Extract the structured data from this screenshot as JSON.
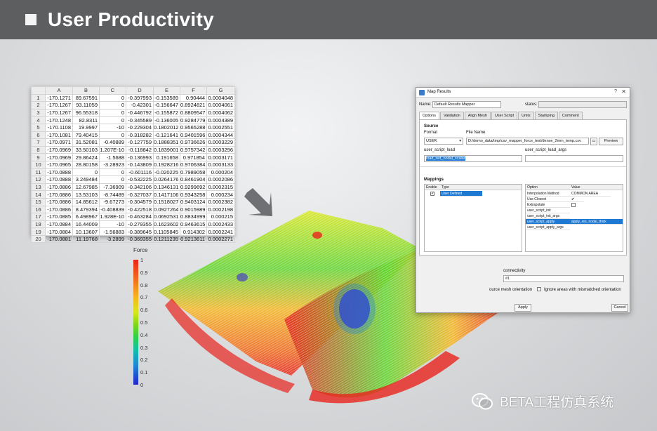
{
  "header": {
    "title": "User Productivity"
  },
  "spreadsheet": {
    "columns": [
      "A",
      "B",
      "C",
      "D",
      "E",
      "F",
      "G"
    ],
    "rows": [
      [
        "1",
        "-170.1271",
        "89.67591",
        "0",
        "-0.397993",
        "-0.153589",
        "0.90444",
        "0.0004048"
      ],
      [
        "2",
        "-170.1267",
        "93.11059",
        "0",
        "-0.42301",
        "-0.156647",
        "0.8924821",
        "0.0004061"
      ],
      [
        "3",
        "-170.1267",
        "96.55318",
        "0",
        "-0.446792",
        "-0.155872",
        "0.8809547",
        "0.0004062"
      ],
      [
        "4",
        "-170.1248",
        "82.8311",
        "0",
        "-0.345589",
        "-0.136005",
        "0.9284779",
        "0.0004389"
      ],
      [
        "5",
        "-170.1108",
        "19.9997",
        "-10",
        "-0.229304",
        "0.1802012",
        "0.9565288",
        "0.0002551"
      ],
      [
        "6",
        "-170.1081",
        "79.40415",
        "0",
        "-0.318282",
        "-0.121641",
        "0.9401596",
        "0.0004344"
      ],
      [
        "7",
        "-170.0971",
        "31.52081",
        "-0.40889",
        "-0.127759",
        "0.1888351",
        "0.9736626",
        "0.0003229"
      ],
      [
        "8",
        "-170.0969",
        "33.50103",
        "1.207E-10",
        "-0.118842",
        "0.1839001",
        "0.9757342",
        "0.0003296"
      ],
      [
        "9",
        "-170.0969",
        "29.86424",
        "-1.5688",
        "-0.136993",
        "0.191658",
        "0.971854",
        "0.0003171"
      ],
      [
        "10",
        "-170.0965",
        "28.80158",
        "-3.28923",
        "-0.143809",
        "0.1928216",
        "0.9706384",
        "0.0003133"
      ],
      [
        "11",
        "-170.0888",
        "0",
        "0",
        "-0.601116",
        "-0.020225",
        "0.7989058",
        "0.000204"
      ],
      [
        "12",
        "-170.0888",
        "3.249484",
        "0",
        "-0.532225",
        "0.0264176",
        "0.8461904",
        "0.0002086"
      ],
      [
        "13",
        "-170.0886",
        "12.67985",
        "-7.36909",
        "-0.342106",
        "0.1346131",
        "0.9299692",
        "0.0002315"
      ],
      [
        "14",
        "-170.0886",
        "13.53103",
        "-8.74489",
        "-0.327037",
        "0.1417106",
        "0.9343258",
        "0.000234"
      ],
      [
        "15",
        "-170.0886",
        "14.85612",
        "-9.67273",
        "-0.304579",
        "0.1518027",
        "0.9403124",
        "0.0002382"
      ],
      [
        "16",
        "-170.0886",
        "8.479394",
        "-0.408839",
        "-0.422518",
        "0.0927264",
        "0.9015989",
        "0.0002198"
      ],
      [
        "17",
        "-170.0885",
        "6.498967",
        "1.928E-10",
        "-0.463284",
        "0.0692531",
        "0.8834999",
        "0.000215"
      ],
      [
        "18",
        "-170.0884",
        "16.44009",
        "-10",
        "-0.279355",
        "0.1623602",
        "0.9463615",
        "0.0002433"
      ],
      [
        "19",
        "-170.0884",
        "10.13607",
        "-1.56883",
        "-0.389645",
        "0.1105845",
        "0.914302",
        "0.0002241"
      ],
      [
        "20",
        "-170.0881",
        "11.19768",
        "-3.2899",
        "-0.369355",
        "0.1211235",
        "0.9213611",
        "0.0002271"
      ]
    ]
  },
  "legend": {
    "title": "Force",
    "ticks": [
      "1",
      "0.9",
      "0.8",
      "0.7",
      "0.6",
      "0.5",
      "0.4",
      "0.3",
      "0.2",
      "0.1",
      "0"
    ],
    "colors": {
      "max": "#e8241c",
      "mid": "#7fd61a",
      "min": "#2226c8"
    }
  },
  "dialog": {
    "title": "Map Results",
    "help": "?",
    "close": "✕",
    "name_label": "Name:",
    "name_value": "Default Results Mapper",
    "status_label": "status:",
    "tabs": [
      "Options",
      "Validation",
      "Align Mesh",
      "User Script",
      "Units",
      "Stamping",
      "Comment"
    ],
    "source_label": "Source",
    "format_label": "Format",
    "format_value": "USER",
    "filename_label": "File Name",
    "filename_value": "D:/demo_data/tmp/csv_mapper_force_test/dense_2mm_temp.csv",
    "preview_label": "Preview",
    "script_load_label": "user_script_load",
    "script_load_value": "load_red_nodal_scalar",
    "script_load_args_label": "user_script_load_args",
    "mappings_label": "Mappings",
    "map_headers": [
      "Enable",
      "Type"
    ],
    "map_row_type": "User Defined",
    "opt_headers": [
      "Option",
      "Value"
    ],
    "options": [
      {
        "name": "Interpolation Method",
        "value": "COMMON AREA"
      },
      {
        "name": "Use Closest",
        "value": "✔"
      },
      {
        "name": "Extrapolate",
        "value": ""
      },
      {
        "name": "user_script_init",
        "value": ""
      },
      {
        "name": "user_script_init_args",
        "value": ""
      },
      {
        "name": "user_script_apply",
        "value": "apply_res_nodal_thick"
      },
      {
        "name": "user_script_apply_args",
        "value": ""
      }
    ],
    "connectivity_label": "connectivity",
    "connectivity_value": "#1",
    "orientation_text": "ource mesh orientation",
    "ignore_text": "Ignore areas with mismatched orientation",
    "apply_label": "Apply",
    "cancel_label": "Cancel"
  },
  "watermark": {
    "text": "BETA工程仿真系统"
  }
}
